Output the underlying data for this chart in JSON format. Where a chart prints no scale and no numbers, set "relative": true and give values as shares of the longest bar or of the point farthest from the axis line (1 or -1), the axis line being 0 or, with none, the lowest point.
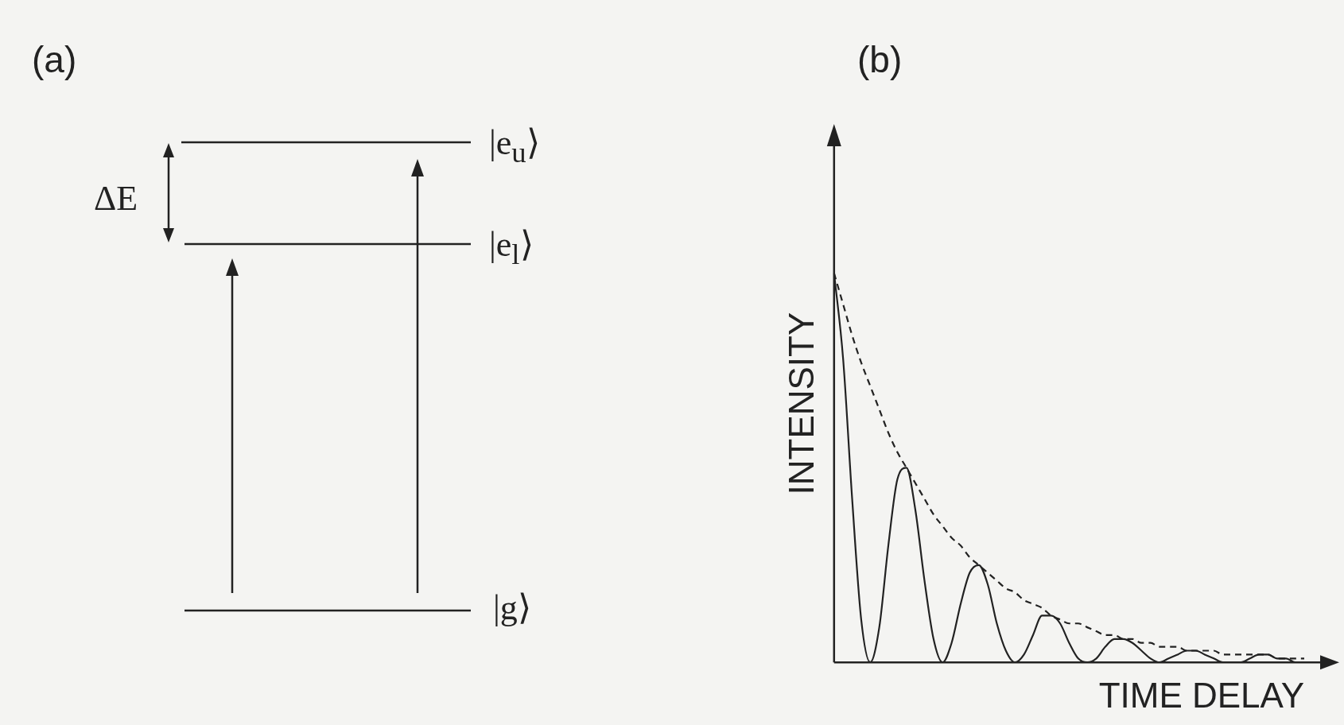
{
  "chart_data": [
    {
      "type": "other",
      "title": "(a)",
      "annotations": [
        "ΔE",
        "|e$_{u}$⟩",
        "|e$_{l}$⟩",
        "|g⟩"
      ]
    },
    {
      "type": "line",
      "title": "(b)",
      "xlabel": "TIME DELAY",
      "ylabel": "INTENSITY",
      "relative": true,
      "legend": false,
      "grid": false,
      "tick_labels": false,
      "marker": "none",
      "categories": [
        null,
        null,
        null,
        null,
        null,
        null,
        null,
        null,
        null,
        null,
        null,
        null,
        null,
        null,
        null,
        null,
        null,
        null,
        null,
        null,
        null,
        null,
        null,
        null,
        null,
        null,
        null,
        null,
        null,
        null,
        null,
        null,
        null,
        null,
        null,
        null,
        null,
        null,
        null,
        null,
        null,
        null,
        null,
        null,
        null,
        null,
        null,
        null,
        null,
        null,
        null,
        null,
        null
      ],
      "series": [
        {
          "color": "#222222",
          "line_style": "solid",
          "values": [
            1,
            0.78,
            0.42,
            0.11,
            0,
            0.09,
            0.3,
            0.47,
            0.5,
            0.39,
            0.21,
            0.06,
            0,
            0.05,
            0.15,
            0.23,
            0.25,
            0.2,
            0.1,
            0.03,
            0,
            0.02,
            0.07,
            0.12,
            0.12,
            0.1,
            0.05,
            0.01,
            0,
            0.01,
            0.04,
            0.06,
            0.06,
            0.05,
            0.03,
            0.01,
            0,
            0.01,
            0.02,
            0.03,
            0.03,
            0.02,
            0.01,
            0,
            0,
            0,
            0.01,
            0.02,
            0.02,
            0.01,
            0.01,
            0,
            0
          ]
        },
        {
          "color": "#222222",
          "line_style": "dashed",
          "values": [
            1,
            0.92,
            0.84,
            0.77,
            0.71,
            0.65,
            0.59,
            0.54,
            0.5,
            0.46,
            0.42,
            0.38,
            0.35,
            0.32,
            0.3,
            0.27,
            0.25,
            0.23,
            0.21,
            0.19,
            0.18,
            0.16,
            0.15,
            0.14,
            0.12,
            0.11,
            0.1,
            0.1,
            0.09,
            0.08,
            0.07,
            0.07,
            0.06,
            0.06,
            0.05,
            0.05,
            0.04,
            0.04,
            0.04,
            0.03,
            0.03,
            0.03,
            0.03,
            0.02,
            0.02,
            0.02,
            0.02,
            0.02,
            0.02,
            0.01,
            0.01,
            0.01,
            0.01
          ]
        }
      ]
    }
  ]
}
